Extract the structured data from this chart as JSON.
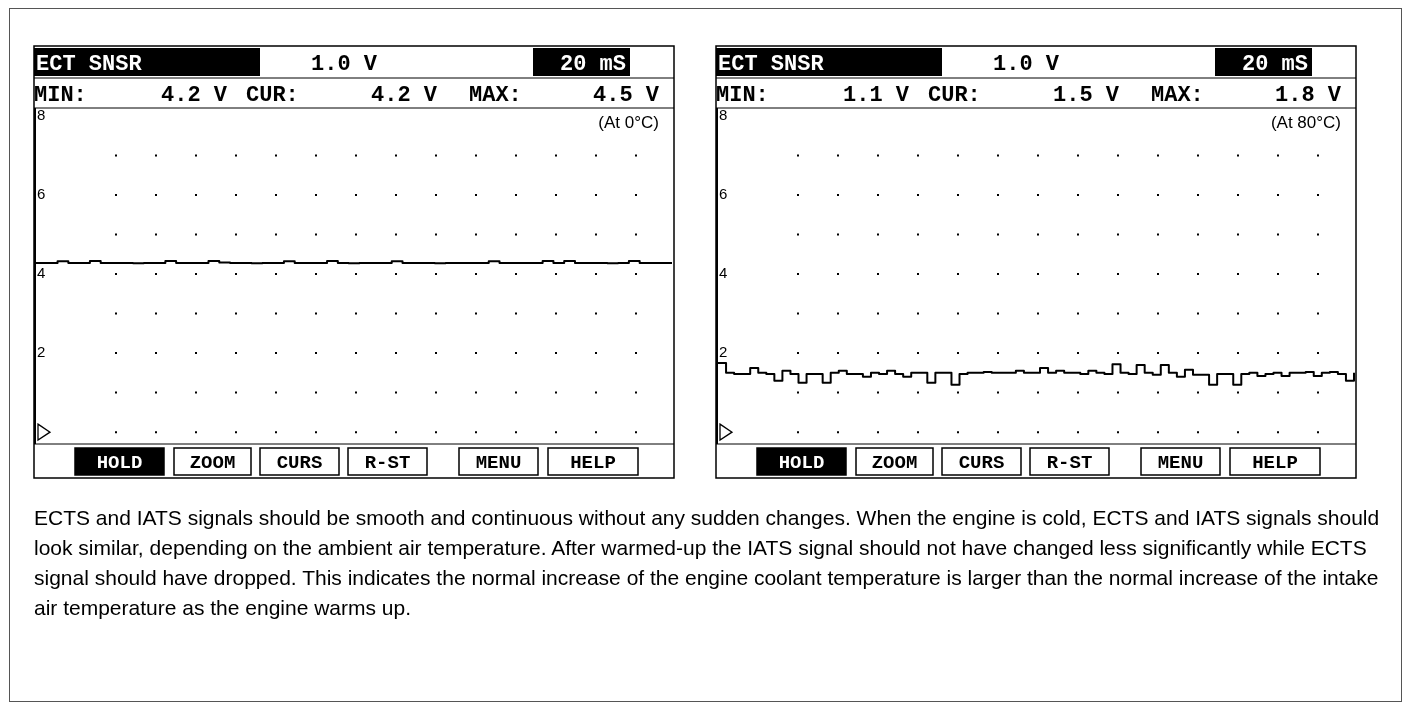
{
  "chart_data": [
    {
      "type": "step",
      "title": "ECT SNSR",
      "categories": [
        null,
        null,
        null,
        null,
        null,
        null,
        null,
        null,
        null,
        null,
        null,
        null,
        null,
        null,
        null,
        null,
        null,
        null,
        null,
        null,
        null,
        null,
        null,
        null,
        null,
        null,
        null,
        null,
        null,
        null,
        null,
        null,
        null,
        null,
        null,
        null,
        null,
        null,
        null,
        null,
        null,
        null,
        null,
        null,
        null,
        null,
        null,
        null,
        null,
        null,
        null,
        null,
        null,
        null,
        null,
        null,
        null,
        null,
        null,
        null
      ],
      "series": [
        {
          "color": "#000000",
          "values": [
            4.28,
            4.28,
            4.32,
            4.28,
            4.28,
            4.33,
            4.28,
            4.28,
            4.28,
            4.27,
            4.28,
            4.28,
            4.33,
            4.28,
            4.28,
            4.28,
            4.33,
            4.29,
            4.28,
            4.28,
            4.27,
            4.28,
            4.28,
            4.32,
            4.28,
            4.28,
            4.28,
            4.33,
            4.28,
            4.27,
            4.28,
            4.28,
            4.28,
            4.32,
            4.28,
            4.28,
            4.28,
            4.27,
            4.28,
            4.28,
            4.28,
            4.28,
            4.32,
            4.28,
            4.28,
            4.28,
            4.28,
            4.33,
            4.28,
            4.33,
            4.28,
            4.28,
            4.28,
            4.27,
            4.28,
            4.33,
            4.28,
            4.28,
            4.28,
            4.28
          ]
        }
      ],
      "ylim": [
        -0.3,
        8.2
      ],
      "yticks": [
        {
          "value": 0,
          "label": null
        },
        {
          "value": 1,
          "label": null
        },
        2,
        {
          "value": 3,
          "label": null
        },
        4,
        {
          "value": 5,
          "label": null
        },
        6,
        {
          "value": 7,
          "label": null
        },
        8
      ],
      "grid": "y",
      "tick_labels": "y",
      "annotations": [
        "1.0 V",
        "20 mS",
        "MIN:",
        "4.2 V",
        "CUR:",
        "4.2 V",
        "MAX:",
        "4.5 V",
        "(At 0°C)",
        "HOLD",
        "ZOOM",
        "CURS",
        "R-ST",
        "MENU",
        "HELP"
      ]
    },
    {
      "type": "step",
      "title": "ECT SNSR",
      "categories": [
        null,
        null,
        null,
        null,
        null,
        null,
        null,
        null,
        null,
        null,
        null,
        null,
        null,
        null,
        null,
        null,
        null,
        null,
        null,
        null,
        null,
        null,
        null,
        null,
        null,
        null,
        null,
        null,
        null,
        null,
        null,
        null,
        null,
        null,
        null,
        null,
        null,
        null,
        null,
        null,
        null,
        null,
        null,
        null,
        null,
        null,
        null,
        null,
        null,
        null,
        null,
        null,
        null,
        null,
        null,
        null,
        null,
        null,
        null,
        null,
        null,
        null,
        null,
        null,
        null,
        null,
        null,
        null,
        null,
        null,
        null,
        null,
        null,
        null,
        null,
        null,
        null,
        null,
        null,
        null
      ],
      "series": [
        {
          "color": "#000000",
          "values": [
            1.75,
            1.5,
            1.47,
            1.47,
            1.62,
            1.5,
            1.47,
            1.3,
            1.55,
            1.47,
            1.25,
            1.47,
            1.47,
            1.25,
            1.5,
            1.55,
            1.47,
            1.47,
            1.4,
            1.5,
            1.47,
            1.55,
            1.47,
            1.4,
            1.5,
            1.5,
            1.25,
            1.5,
            1.5,
            1.2,
            1.47,
            1.5,
            1.5,
            1.52,
            1.5,
            1.5,
            1.5,
            1.55,
            1.5,
            1.5,
            1.62,
            1.5,
            1.55,
            1.5,
            1.5,
            1.47,
            1.55,
            1.5,
            1.47,
            1.72,
            1.5,
            1.47,
            1.7,
            1.5,
            1.45,
            1.7,
            1.5,
            1.4,
            1.58,
            1.45,
            1.45,
            1.2,
            1.47,
            1.47,
            1.2,
            1.47,
            1.5,
            1.42,
            1.47,
            1.5,
            1.42,
            1.5,
            1.5,
            1.52,
            1.42,
            1.5,
            1.52,
            1.47,
            1.3,
            1.5
          ]
        }
      ],
      "ylim": [
        -0.3,
        8.2
      ],
      "yticks": [
        {
          "value": 0,
          "label": null
        },
        {
          "value": 1,
          "label": null
        },
        2,
        {
          "value": 3,
          "label": null
        },
        4,
        {
          "value": 5,
          "label": null
        },
        6,
        {
          "value": 7,
          "label": null
        },
        8
      ],
      "grid": "y",
      "tick_labels": "y",
      "annotations": [
        "1.0 V",
        "20 mS",
        "MIN:",
        "1.1 V",
        "CUR:",
        "1.5 V",
        "MAX:",
        "1.8 V",
        "(At 80°C)",
        "HOLD",
        "ZOOM",
        "CURS",
        "R-ST",
        "MENU",
        "HELP",
        "ECTS and IATS signals should be smooth and continuous without any sudden changes. When the engine is cold, ECTS and IATS signals should look similar, depending on the ambient air temperature. After warmed-up the IATS signal should not have changed less significantly while ECTS signal should have dropped. This indicates the normal increase of the engine coolant temperature is larger than the normal increase of the intake air temperature as the engine warms up."
      ]
    }
  ]
}
